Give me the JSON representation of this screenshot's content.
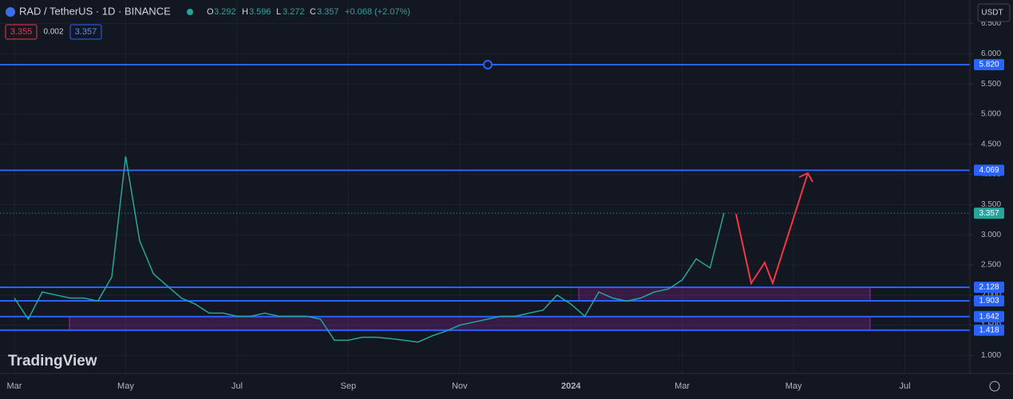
{
  "chart_data": {
    "type": "line",
    "header": {
      "symbol": "RAD / TetherUS · 1D · BINANCE",
      "open_label": "O",
      "open": "3.292",
      "high_label": "H",
      "high": "3.596",
      "low_label": "L",
      "low": "3.272",
      "close_label": "C",
      "close": "3.357",
      "change": "+0.068 (+2.07%)",
      "sell": "3.355",
      "spread": "0.002",
      "buy": "3.357",
      "currency": "USDT"
    },
    "watermark": "TradingView",
    "categories": [
      "Mar",
      null,
      null,
      null,
      null,
      null,
      null,
      null,
      "May",
      null,
      null,
      null,
      null,
      null,
      null,
      null,
      "Jul",
      null,
      null,
      null,
      null,
      null,
      null,
      null,
      "Sep",
      null,
      null,
      null,
      null,
      null,
      null,
      null,
      "Nov",
      null,
      null,
      null,
      null,
      null,
      null,
      null,
      "2024",
      null,
      null,
      null,
      null,
      null,
      null,
      null,
      "Mar",
      null,
      null,
      null,
      null,
      null,
      null,
      null,
      "May",
      null,
      null,
      null,
      null,
      null,
      null,
      null,
      "Jul",
      null,
      null,
      null,
      null
    ],
    "values": [
      1.95,
      1.6,
      2.05,
      2.0,
      1.95,
      1.95,
      1.9,
      2.3,
      4.3,
      2.9,
      2.35,
      2.15,
      1.95,
      1.85,
      1.7,
      1.7,
      1.65,
      1.65,
      1.7,
      1.65,
      1.65,
      1.65,
      1.6,
      1.25,
      1.25,
      1.3,
      1.3,
      1.28,
      1.25,
      1.22,
      1.32,
      1.4,
      1.5,
      1.55,
      1.6,
      1.65,
      1.65,
      1.7,
      1.75,
      2.0,
      1.85,
      1.65,
      2.05,
      1.95,
      1.9,
      1.95,
      2.05,
      2.1,
      2.25,
      2.6,
      2.45,
      3.357,
      null,
      null,
      null,
      null,
      null,
      null,
      null,
      null,
      null,
      null,
      null,
      null,
      null,
      null,
      null,
      null,
      null
    ],
    "color": "#26a69a",
    "ylim": [
      0.7,
      6.6
    ],
    "yticks": [
      {
        "value": 1,
        "label": "1.000"
      },
      {
        "value": 1.5,
        "label": "1.500"
      },
      {
        "value": 2,
        "label": "2.000"
      },
      {
        "value": 2.5,
        "label": "2.500"
      },
      {
        "value": 3,
        "label": "3.000"
      },
      {
        "value": 3.5,
        "label": "3.500"
      },
      {
        "value": 4,
        "label": "4.000"
      },
      {
        "value": 4.5,
        "label": "4.500"
      },
      {
        "value": 5,
        "label": "5.000"
      },
      {
        "value": 5.5,
        "label": "5.500"
      },
      {
        "value": 6,
        "label": "6.000"
      },
      {
        "value": 6.5,
        "label": "6.500"
      }
    ],
    "levels": [
      {
        "value": 5.82,
        "label": "5.820"
      },
      {
        "value": 4.069,
        "label": "4.069"
      },
      {
        "value": 2.128,
        "label": "2.128"
      },
      {
        "value": 1.903,
        "label": "1.903"
      },
      {
        "value": 1.642,
        "label": "1.642"
      },
      {
        "value": 1.418,
        "label": "1.418"
      }
    ],
    "level_color": "#2962ff",
    "last_price": {
      "value": 3.357,
      "label": "3.357"
    },
    "grid": true
  }
}
